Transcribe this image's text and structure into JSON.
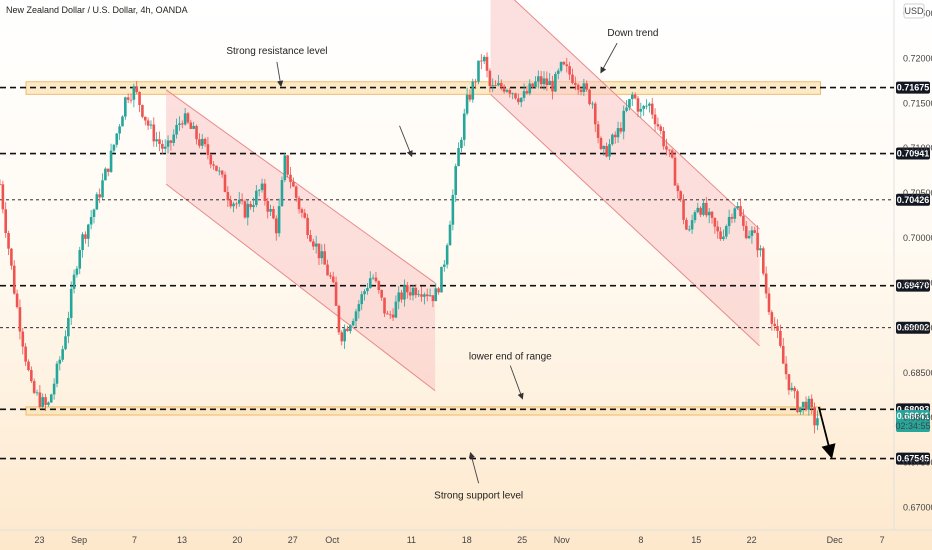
{
  "chart_data": {
    "type": "candlestick",
    "title": "New Zealand Dollar / U.S. Dollar, 4h, OANDA",
    "currency_label": "USD",
    "ylim": [
      0.6675,
      0.7265
    ],
    "y_ticks": [
      "0.72500",
      "0.72000",
      "0.71500",
      "0.71000",
      "0.70500",
      "0.70000",
      "0.69500",
      "0.69000",
      "0.68500",
      "0.68000",
      "0.67500",
      "0.67000"
    ],
    "x_ticks": [
      {
        "label": "23",
        "t": 10
      },
      {
        "label": "Sep",
        "t": 20
      },
      {
        "label": "7",
        "t": 34
      },
      {
        "label": "13",
        "t": 46
      },
      {
        "label": "20",
        "t": 60
      },
      {
        "label": "27",
        "t": 74
      },
      {
        "label": "Oct",
        "t": 84
      },
      {
        "label": "11",
        "t": 104
      },
      {
        "label": "18",
        "t": 118
      },
      {
        "label": "25",
        "t": 132
      },
      {
        "label": "Nov",
        "t": 142
      },
      {
        "label": "8",
        "t": 162
      },
      {
        "label": "15",
        "t": 176
      },
      {
        "label": "22",
        "t": 190
      },
      {
        "label": "Dec",
        "t": 211
      },
      {
        "label": "7",
        "t": 223
      }
    ],
    "price_path": [
      [
        0,
        0.706
      ],
      [
        4,
        0.693
      ],
      [
        8,
        0.683
      ],
      [
        12,
        0.681
      ],
      [
        16,
        0.688
      ],
      [
        20,
        0.699
      ],
      [
        24,
        0.7035
      ],
      [
        28,
        0.709
      ],
      [
        32,
        0.716
      ],
      [
        34,
        0.7165
      ],
      [
        38,
        0.712
      ],
      [
        42,
        0.7095
      ],
      [
        46,
        0.7135
      ],
      [
        50,
        0.711
      ],
      [
        54,
        0.7085
      ],
      [
        58,
        0.7045
      ],
      [
        62,
        0.703
      ],
      [
        66,
        0.7055
      ],
      [
        70,
        0.701
      ],
      [
        72,
        0.7085
      ],
      [
        76,
        0.703
      ],
      [
        80,
        0.699
      ],
      [
        84,
        0.695
      ],
      [
        86,
        0.689
      ],
      [
        90,
        0.692
      ],
      [
        94,
        0.696
      ],
      [
        98,
        0.691
      ],
      [
        102,
        0.694
      ],
      [
        106,
        0.6945
      ],
      [
        110,
        0.6935
      ],
      [
        112,
        0.6965
      ],
      [
        114,
        0.703
      ],
      [
        116,
        0.71
      ],
      [
        118,
        0.715
      ],
      [
        120,
        0.7175
      ],
      [
        122,
        0.7205
      ],
      [
        124,
        0.7165
      ],
      [
        128,
        0.717
      ],
      [
        132,
        0.7155
      ],
      [
        136,
        0.7175
      ],
      [
        140,
        0.717
      ],
      [
        142,
        0.719
      ],
      [
        146,
        0.7175
      ],
      [
        150,
        0.715
      ],
      [
        152,
        0.709
      ],
      [
        156,
        0.7115
      ],
      [
        160,
        0.716
      ],
      [
        162,
        0.714
      ],
      [
        164,
        0.715
      ],
      [
        166,
        0.713
      ],
      [
        170,
        0.708
      ],
      [
        174,
        0.7
      ],
      [
        176,
        0.704
      ],
      [
        178,
        0.703
      ],
      [
        182,
        0.7
      ],
      [
        186,
        0.704
      ],
      [
        188,
        0.701
      ],
      [
        190,
        0.7005
      ],
      [
        192,
        0.699
      ],
      [
        194,
        0.693
      ],
      [
        196,
        0.69
      ],
      [
        198,
        0.686
      ],
      [
        200,
        0.683
      ],
      [
        202,
        0.681
      ],
      [
        204,
        0.6818
      ],
      [
        206,
        0.6795
      ],
      [
        207,
        0.6804
      ]
    ],
    "horizontal_lines": [
      {
        "value": 0.71675,
        "label": "0.71675",
        "style": "dashed-bold"
      },
      {
        "value": 0.70941,
        "label": "0.70941",
        "style": "dashed-bold"
      },
      {
        "value": 0.70426,
        "label": "0.70426",
        "style": "dashed-thin"
      },
      {
        "value": 0.6947,
        "label": "0.69470",
        "style": "dashed-bold"
      },
      {
        "value": 0.69002,
        "label": "0.69002",
        "style": "dashed-thin"
      },
      {
        "value": 0.68093,
        "label": "0.68093",
        "style": "dashed-bold"
      },
      {
        "value": 0.67545,
        "label": "0.67545",
        "style": "dashed-bold"
      }
    ],
    "current_price": {
      "label": "0.68041",
      "countdown": "02:34:55",
      "value": 0.68041
    },
    "zones": [
      {
        "t0": 0,
        "t1": 214,
        "y0": 0.716,
        "y1": 0.7174,
        "name": "resistance-zone"
      },
      {
        "t0": 0,
        "t1": 214,
        "y0": 0.6803,
        "y1": 0.6812,
        "name": "support-zone"
      }
    ],
    "channels": [
      {
        "top": [
          [
            42,
            0.7165
          ],
          [
            110,
            0.695
          ]
        ],
        "bottom": [
          [
            42,
            0.706
          ],
          [
            110,
            0.683
          ]
        ]
      },
      {
        "top": [
          [
            124,
            0.729
          ],
          [
            192,
            0.701
          ]
        ],
        "bottom": [
          [
            124,
            0.716
          ],
          [
            192,
            0.688
          ]
        ]
      }
    ],
    "annotations": [
      {
        "text": "Strong resistance level",
        "t": 70,
        "y": 0.7205
      },
      {
        "text": "Down trend",
        "t": 160,
        "y": 0.7225
      },
      {
        "text": "lower end of range",
        "t": 129,
        "y": 0.6865
      },
      {
        "text": "Strong support level",
        "t": 121,
        "y": 0.671
      }
    ],
    "arrows": [
      {
        "from": [
          70,
          0.7196
        ],
        "to": [
          71,
          0.717
        ]
      },
      {
        "from": [
          101,
          0.7125
        ],
        "to": [
          104,
          0.7092
        ]
      },
      {
        "from": [
          156,
          0.7217
        ],
        "to": [
          152,
          0.7185
        ]
      },
      {
        "from": [
          129,
          0.6858
        ],
        "to": [
          132,
          0.6822
        ]
      },
      {
        "from": [
          121,
          0.6727
        ],
        "to": [
          119,
          0.676
        ]
      },
      {
        "from": [
          207,
          0.6812
        ],
        "to": [
          210,
          0.676
        ],
        "bold": true
      }
    ],
    "colors": {
      "up": "#26a69a",
      "down": "#ef5350",
      "channel": "#f6a6a6",
      "zone": "#fbe3b4",
      "line": "#111111"
    }
  }
}
